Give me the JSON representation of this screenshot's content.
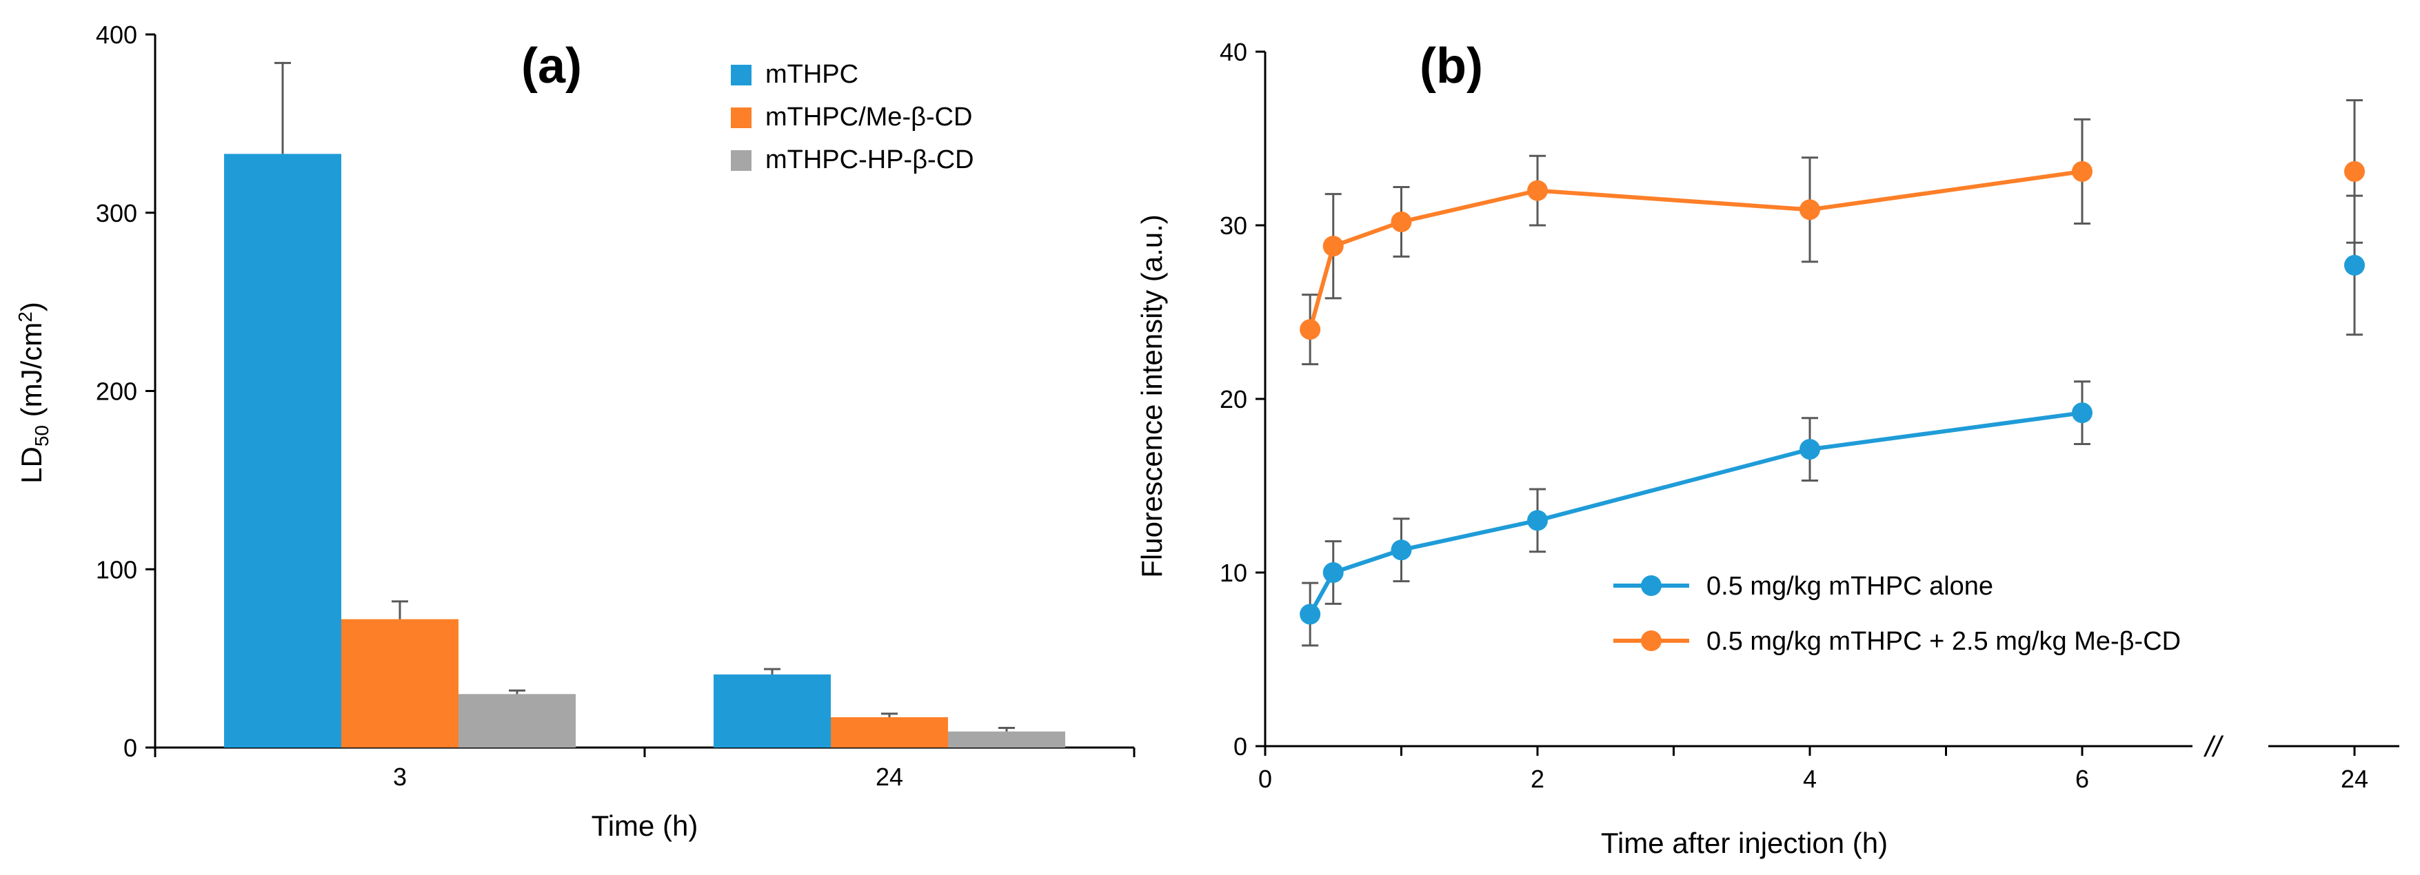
{
  "colors": {
    "blue": "#1f9cd8",
    "orange": "#fd7f28",
    "gray": "#a6a6a6"
  },
  "chart_data": [
    {
      "type": "bar",
      "panel_label": "(a)",
      "title": "",
      "xlabel": "Time (h)",
      "ylabel_main": "LD",
      "ylabel_sub": "50",
      "ylabel_unit_pre": " (mJ/cm",
      "ylabel_unit_sup": "2",
      "ylabel_unit_post": ")",
      "ylim": [
        0,
        400
      ],
      "yticks": [
        0,
        100,
        200,
        300,
        400
      ],
      "categories": [
        "3",
        "24"
      ],
      "grid": false,
      "legend_position": "top-right",
      "series": [
        {
          "name": "mTHPC",
          "color": "#1f9cd8",
          "values": [
            333,
            41
          ],
          "errors": [
            51,
            3
          ]
        },
        {
          "name": "mTHPC/Me-β-CD",
          "color": "#fd7f28",
          "values": [
            72,
            17
          ],
          "errors": [
            10,
            2
          ]
        },
        {
          "name": "mTHPC-HP-β-CD",
          "color": "#a6a6a6",
          "values": [
            30,
            9
          ],
          "errors": [
            2,
            2
          ]
        }
      ]
    },
    {
      "type": "line",
      "panel_label": "(b)",
      "title": "",
      "xlabel": "Time after injection (h)",
      "ylabel": "Fluorescence intensity (a.u.)",
      "ylim": [
        0,
        40
      ],
      "yticks": [
        0,
        10,
        20,
        30,
        40
      ],
      "xticks": [
        "0",
        "2",
        "4",
        "6",
        "24"
      ],
      "axis_break": "//",
      "grid": false,
      "legend_position": "bottom-right",
      "series": [
        {
          "name": "0.5 mg/kg mTHPC alone",
          "color": "#1f9cd8",
          "x": [
            0.33,
            0.5,
            1,
            2,
            4,
            6
          ],
          "y": [
            7.6,
            10.0,
            11.3,
            13.0,
            17.1,
            19.2
          ],
          "errors": [
            1.8,
            1.8,
            1.8,
            1.8,
            1.8,
            1.8
          ],
          "break_point": {
            "x": 24,
            "y": 27.7,
            "error": 4.0
          }
        },
        {
          "name": "0.5 mg/kg mTHPC + 2.5 mg/kg Me-β-CD",
          "color": "#fd7f28",
          "x": [
            0.33,
            0.5,
            1,
            2,
            4,
            6
          ],
          "y": [
            24.0,
            28.8,
            30.2,
            32.0,
            30.9,
            33.1
          ],
          "errors": [
            2.0,
            3.0,
            2.0,
            2.0,
            3.0,
            3.0
          ],
          "break_point": {
            "x": 24,
            "y": 33.1,
            "error": 4.1
          }
        }
      ]
    }
  ]
}
